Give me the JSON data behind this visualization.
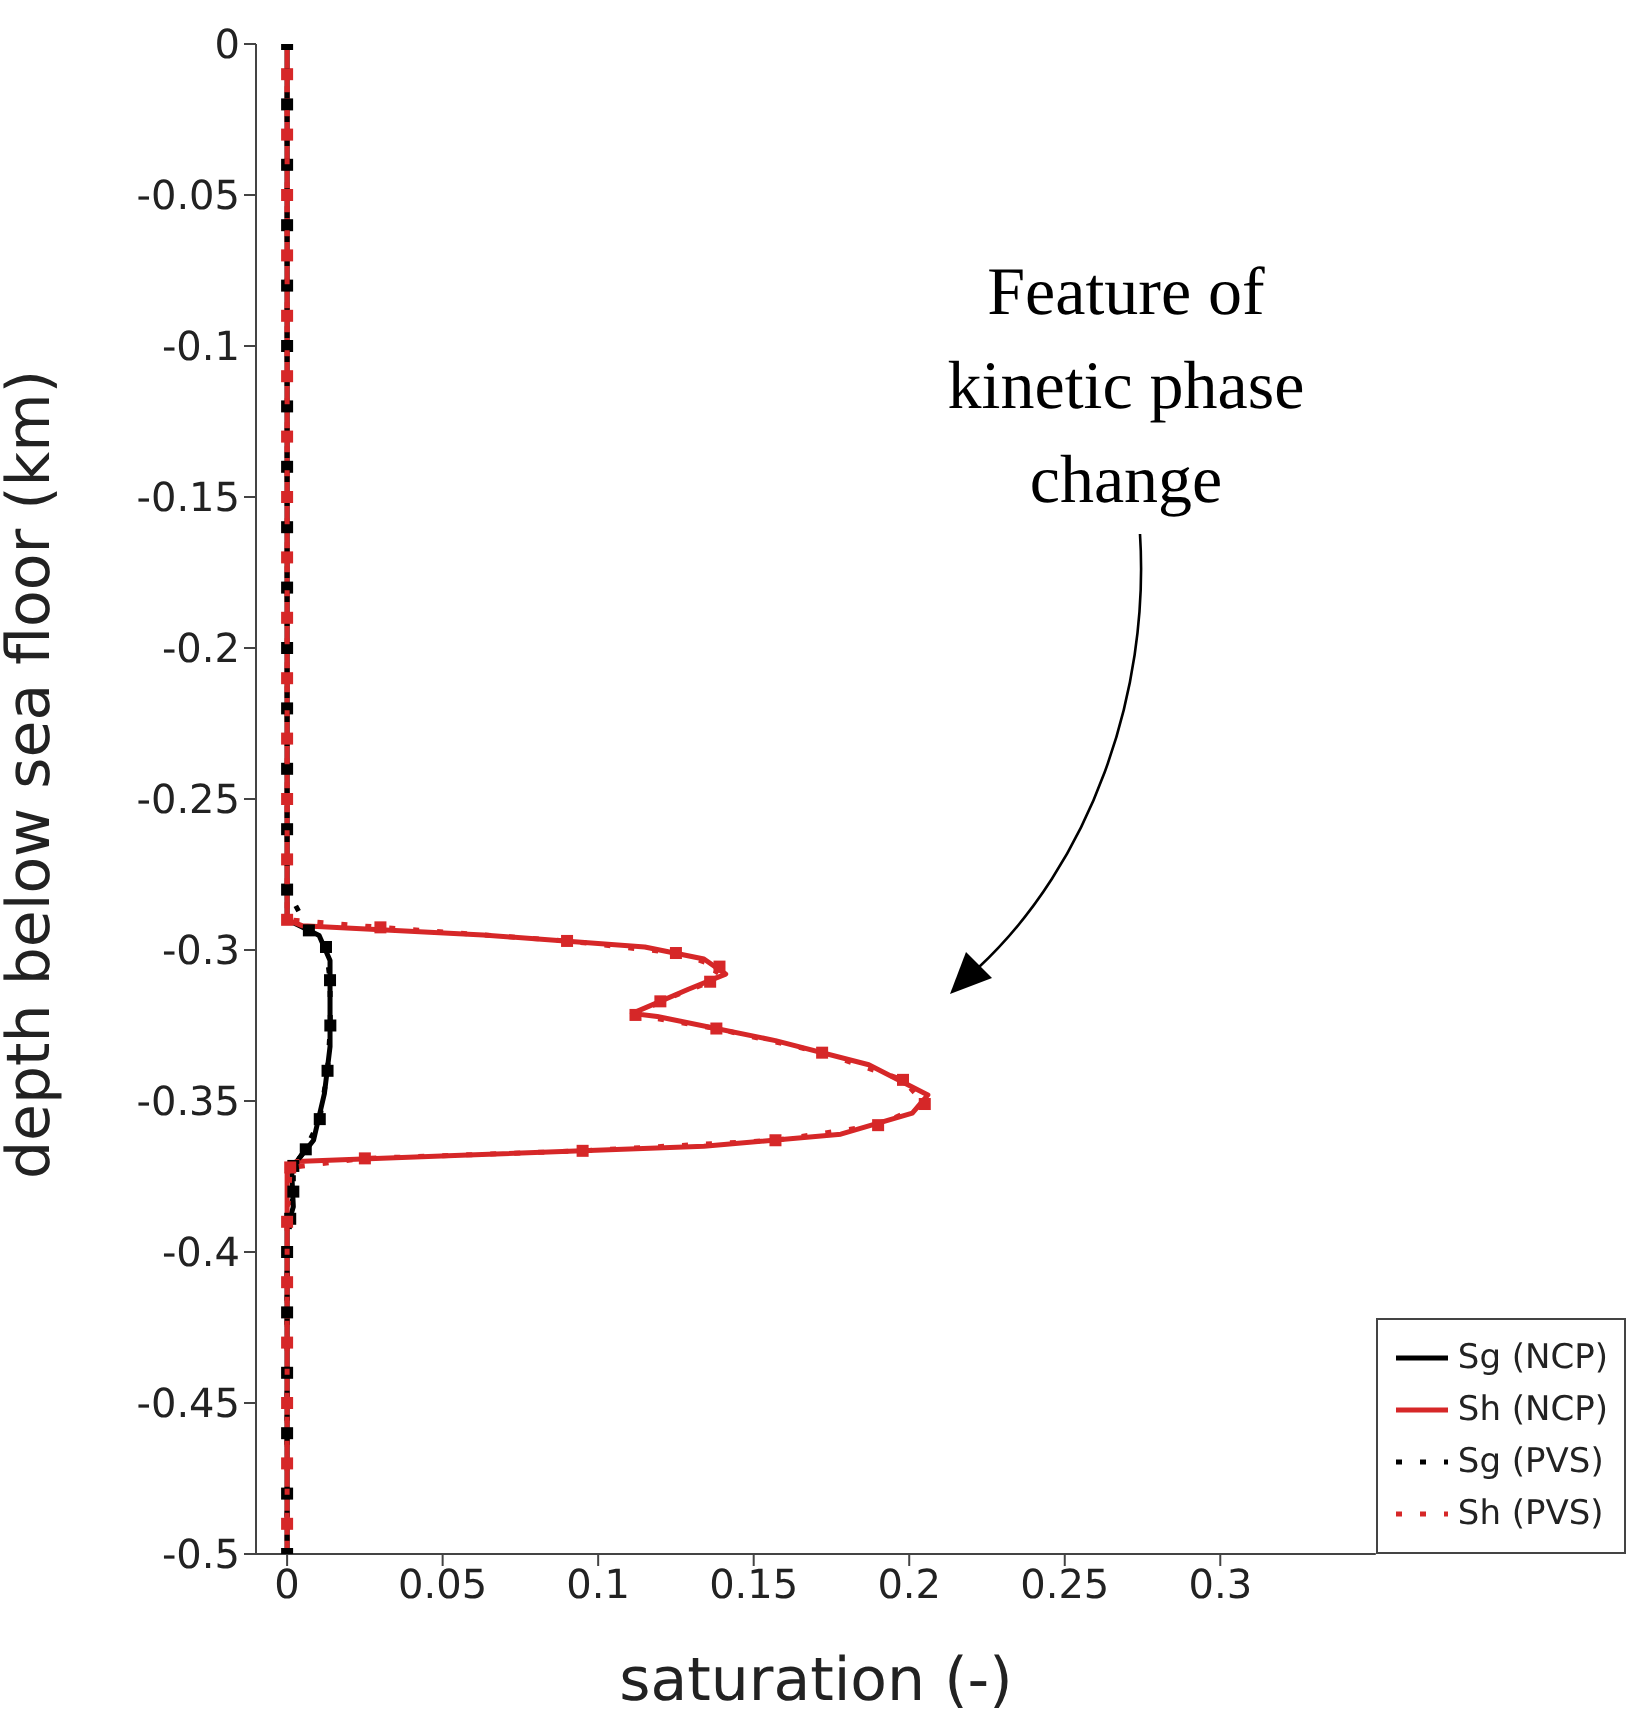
{
  "chart_data": {
    "type": "line",
    "xlabel": "saturation (-)",
    "ylabel": "depth below sea floor (km)",
    "xlim": [
      -0.01,
      0.35
    ],
    "xticks": [
      0,
      0.05,
      0.1,
      0.15,
      0.2,
      0.25,
      0.3
    ],
    "ylim": [
      -0.5,
      0
    ],
    "yticks": [
      0,
      -0.05,
      -0.1,
      -0.15,
      -0.2,
      -0.25,
      -0.3,
      -0.35,
      -0.4,
      -0.45,
      -0.5
    ],
    "grid": false,
    "legend": "bottom right",
    "annotations": [
      "Feature of kinetic phase change"
    ],
    "series": [
      {
        "name": "Sg (NCP)",
        "color": "#000000",
        "line_style": "solid",
        "marker": "none",
        "x": [
          0,
          0,
          0.004,
          0.0103,
          0.0138,
          0.0138,
          0.012,
          0.0085,
          0.0035,
          0.0015,
          0.002,
          0,
          0
        ],
        "values": [
          0,
          -0.29,
          -0.292,
          -0.2952,
          -0.3035,
          -0.332,
          -0.3475,
          -0.363,
          -0.3695,
          -0.374,
          -0.385,
          -0.392,
          -0.5
        ]
      },
      {
        "name": "Sh (NCP)",
        "color": "#d62728",
        "line_style": "solid",
        "marker": "none",
        "x": [
          0,
          0,
          0.005,
          0.063,
          0.115,
          0.134,
          0.141,
          0.129,
          0.111,
          0.119,
          0.157,
          0.187,
          0.206,
          0.201,
          0.178,
          0.134,
          0.056,
          0.003,
          0,
          0
        ],
        "values": [
          0,
          -0.29,
          -0.292,
          -0.295,
          -0.299,
          -0.303,
          -0.308,
          -0.313,
          -0.321,
          -0.322,
          -0.33,
          -0.338,
          -0.348,
          -0.354,
          -0.361,
          -0.365,
          -0.368,
          -0.37,
          -0.374,
          -0.5
        ]
      },
      {
        "name": "Sg (PVS)",
        "color": "#000000",
        "line_style": "dotted",
        "marker": "square",
        "x": [
          0,
          0,
          0,
          0,
          0,
          0,
          0,
          0,
          0,
          0,
          0,
          0,
          0,
          0,
          0,
          0.007,
          0.0125,
          0.0138,
          0.0139,
          0.013,
          0.0105,
          0.006,
          0.002,
          0.002,
          0.001,
          0,
          0,
          0,
          0,
          0,
          0
        ],
        "values": [
          0,
          -0.02,
          -0.04,
          -0.06,
          -0.08,
          -0.1,
          -0.12,
          -0.14,
          -0.16,
          -0.18,
          -0.2,
          -0.22,
          -0.24,
          -0.26,
          -0.28,
          -0.2935,
          -0.299,
          -0.31,
          -0.325,
          -0.34,
          -0.356,
          -0.366,
          -0.3715,
          -0.38,
          -0.389,
          -0.4,
          -0.42,
          -0.44,
          -0.46,
          -0.48,
          -0.5
        ]
      },
      {
        "name": "Sh (PVS)",
        "color": "#d62728",
        "line_style": "dotted",
        "marker": "square",
        "x": [
          0,
          0,
          0,
          0,
          0,
          0,
          0,
          0,
          0,
          0,
          0,
          0,
          0,
          0,
          0,
          0.03,
          0.09,
          0.125,
          0.139,
          0.136,
          0.12,
          0.112,
          0.138,
          0.172,
          0.198,
          0.205,
          0.19,
          0.157,
          0.095,
          0.025,
          0.001,
          0,
          0,
          0,
          0,
          0,
          0
        ],
        "values": [
          -0.01,
          -0.03,
          -0.05,
          -0.07,
          -0.09,
          -0.11,
          -0.13,
          -0.15,
          -0.17,
          -0.19,
          -0.21,
          -0.23,
          -0.25,
          -0.27,
          -0.29,
          -0.2925,
          -0.297,
          -0.301,
          -0.3055,
          -0.3105,
          -0.317,
          -0.3215,
          -0.326,
          -0.334,
          -0.343,
          -0.351,
          -0.358,
          -0.363,
          -0.3665,
          -0.369,
          -0.372,
          -0.39,
          -0.41,
          -0.43,
          -0.45,
          -0.47,
          -0.49
        ]
      }
    ]
  }
}
